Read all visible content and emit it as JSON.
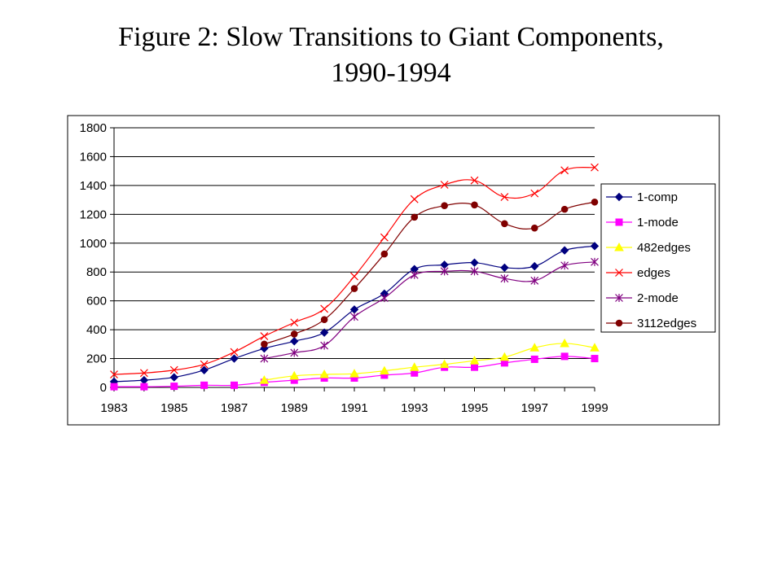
{
  "slide": {
    "title_line1": "Figure 2: Slow Transitions to Giant Components,",
    "title_line2": "1990-1994"
  },
  "chart_data": {
    "type": "line",
    "title": "",
    "xlabel": "",
    "ylabel": "",
    "ylim": [
      0,
      1800
    ],
    "yticks": [
      0,
      200,
      400,
      600,
      800,
      1000,
      1200,
      1400,
      1600,
      1800
    ],
    "xlim": [
      1983,
      1999
    ],
    "xticks": [
      1983,
      1985,
      1987,
      1989,
      1991,
      1993,
      1995,
      1997,
      1999
    ],
    "grid": "horizontal",
    "legend_position": "right",
    "series": [
      {
        "name": "1-comp",
        "color": "#00007f",
        "marker": "diamond",
        "x": [
          1983,
          1984,
          1985,
          1986,
          1987,
          1988,
          1989,
          1990,
          1991,
          1992,
          1993,
          1994,
          1995,
          1996,
          1997,
          1998,
          1999
        ],
        "y": [
          40,
          50,
          70,
          120,
          200,
          270,
          320,
          380,
          540,
          650,
          820,
          850,
          865,
          830,
          840,
          950,
          980
        ]
      },
      {
        "name": "1-mode",
        "color": "#ff00ff",
        "marker": "square",
        "x": [
          1983,
          1984,
          1985,
          1986,
          1987,
          1988,
          1989,
          1990,
          1991,
          1992,
          1993,
          1994,
          1995,
          1996,
          1997,
          1998,
          1999
        ],
        "y": [
          5,
          5,
          8,
          15,
          15,
          35,
          50,
          65,
          65,
          85,
          100,
          140,
          140,
          170,
          195,
          215,
          200
        ]
      },
      {
        "name": "482edges",
        "color": "#ffff00",
        "marker": "triangle",
        "x": [
          1988,
          1989,
          1990,
          1991,
          1992,
          1993,
          1994,
          1995,
          1996,
          1997,
          1998,
          1999
        ],
        "y": [
          50,
          80,
          90,
          95,
          115,
          140,
          160,
          185,
          210,
          275,
          305,
          275
        ]
      },
      {
        "name": "edges",
        "color": "#ff0000",
        "marker": "x",
        "x": [
          1983,
          1984,
          1985,
          1986,
          1987,
          1988,
          1989,
          1990,
          1991,
          1992,
          1993,
          1994,
          1995,
          1996,
          1997,
          1998,
          1999
        ],
        "y": [
          90,
          100,
          120,
          160,
          245,
          355,
          450,
          545,
          770,
          1040,
          1305,
          1405,
          1435,
          1320,
          1345,
          1505,
          1525
        ]
      },
      {
        "name": "2-mode",
        "color": "#800080",
        "marker": "star",
        "x": [
          1988,
          1989,
          1990,
          1991,
          1992,
          1993,
          1994,
          1995,
          1996,
          1997,
          1998,
          1999
        ],
        "y": [
          200,
          240,
          290,
          490,
          620,
          780,
          805,
          805,
          755,
          740,
          845,
          870
        ]
      },
      {
        "name": "3112edges",
        "color": "#800000",
        "marker": "circle",
        "x": [
          1988,
          1989,
          1990,
          1991,
          1992,
          1993,
          1994,
          1995,
          1996,
          1997,
          1998,
          1999
        ],
        "y": [
          300,
          370,
          470,
          685,
          925,
          1180,
          1260,
          1265,
          1135,
          1105,
          1235,
          1285
        ]
      }
    ]
  }
}
